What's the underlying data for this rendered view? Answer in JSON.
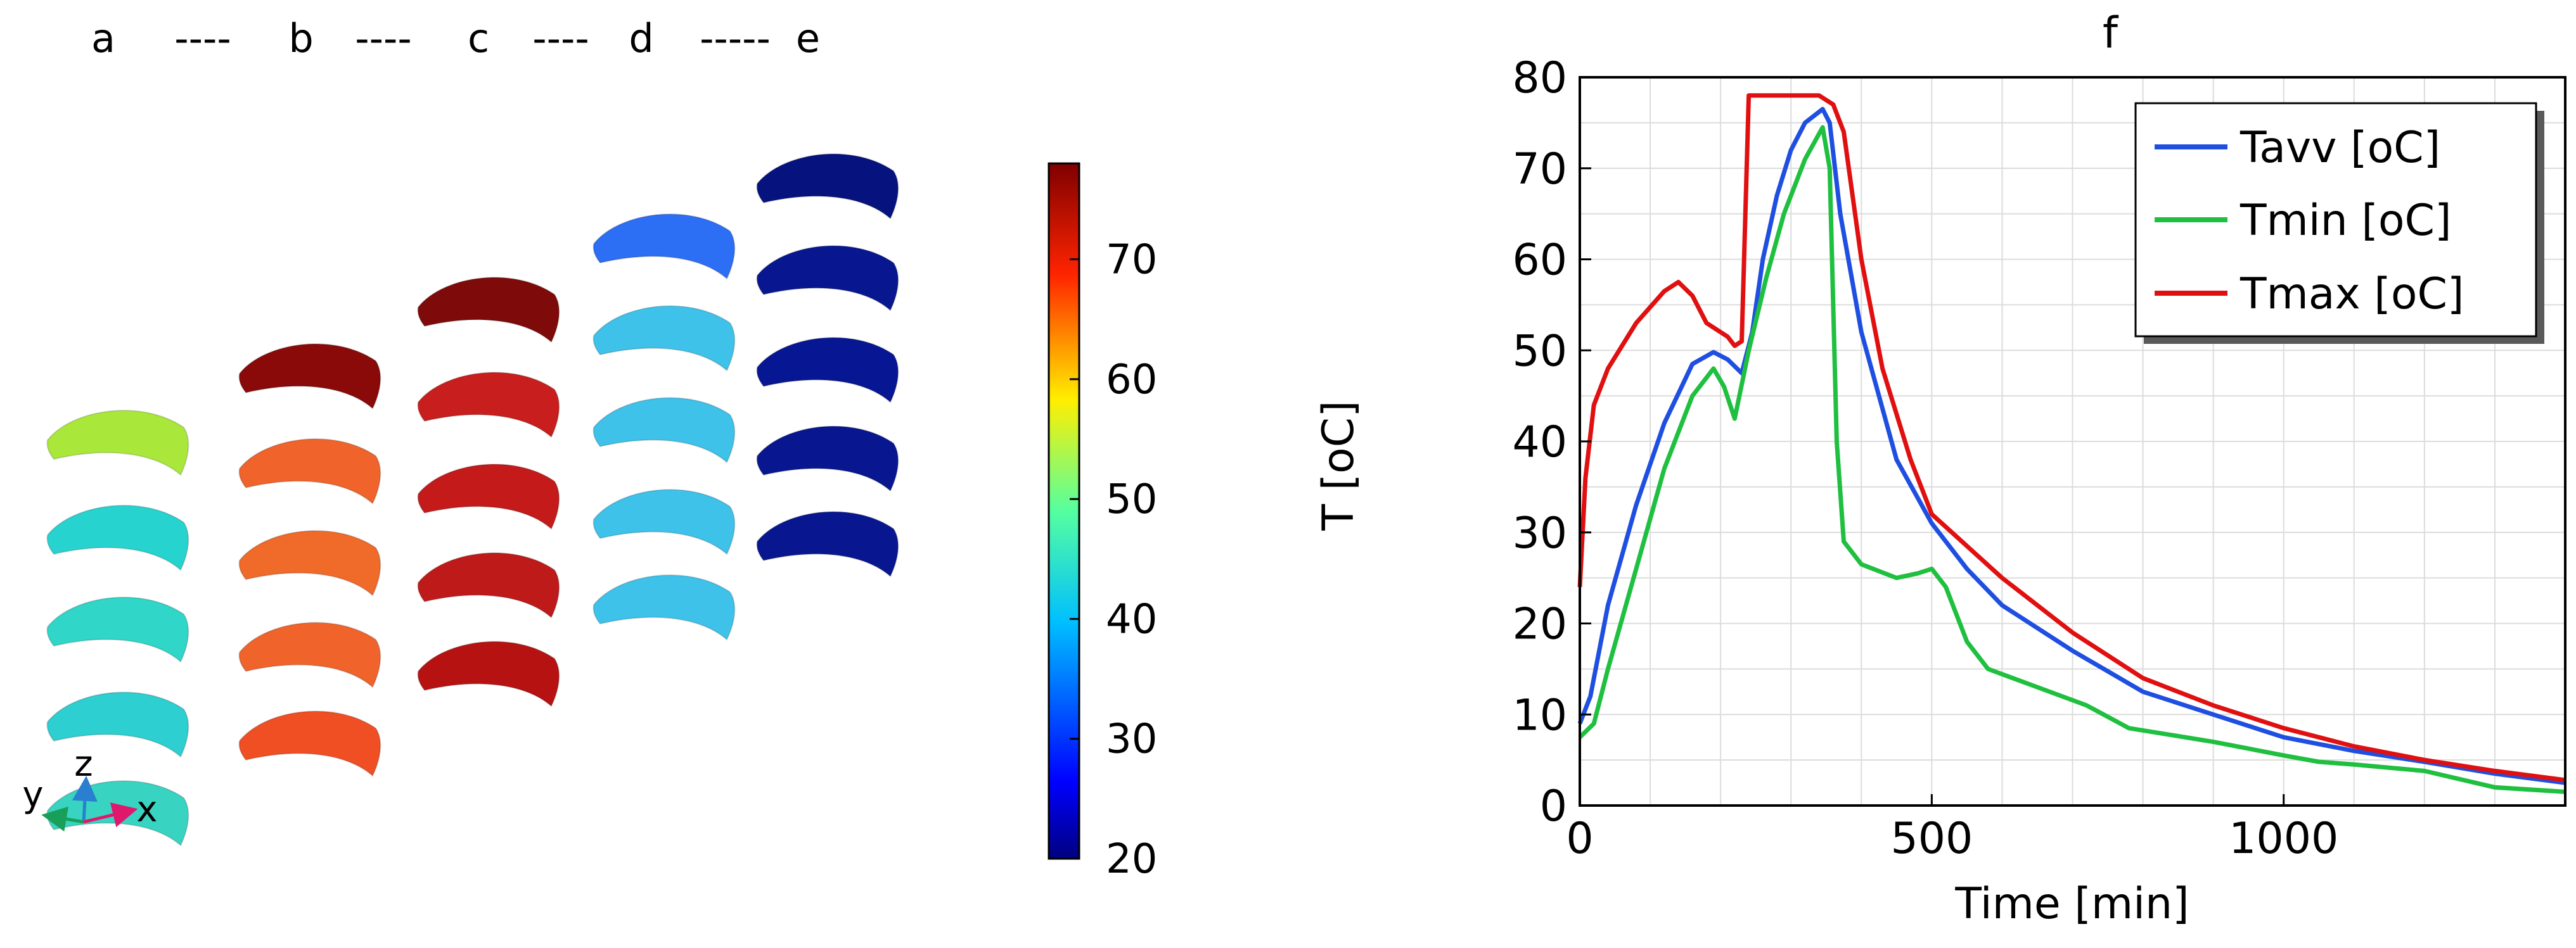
{
  "left_panel": {
    "sequence_labels": [
      "a",
      "----",
      "b",
      "----",
      "c",
      "----",
      "d",
      "-----",
      "e"
    ],
    "colorbar": {
      "label": "T [oC]",
      "min": 20,
      "max": 78,
      "ticks": [
        20,
        30,
        40,
        50,
        60,
        70
      ],
      "colormap": "jet"
    },
    "axes_triad": {
      "x": "x",
      "y": "y",
      "z": "z"
    },
    "snapshot_columns": [
      {
        "id": "a",
        "colors": [
          "#a9e83a",
          "#27d3cf",
          "#30d6c8",
          "#2dcfd0",
          "#39d3c2"
        ]
      },
      {
        "id": "b",
        "colors": [
          "#8a0a0a",
          "#f0642c",
          "#f06a2a",
          "#f0642c",
          "#f04f24"
        ]
      },
      {
        "id": "c",
        "colors": [
          "#7e0a0a",
          "#c81e1e",
          "#c41a1a",
          "#bf1a1a",
          "#b71212"
        ]
      },
      {
        "id": "d",
        "colors": [
          "#2c6ff5",
          "#3ec2ea",
          "#3ec2ea",
          "#3ec2ea",
          "#3ec2ea"
        ]
      },
      {
        "id": "e",
        "colors": [
          "#06127e",
          "#08178f",
          "#071692",
          "#08178f",
          "#08178f"
        ]
      }
    ]
  },
  "chart_data": {
    "type": "line",
    "title": "f",
    "xlabel": "Time [min]",
    "ylabel": "",
    "xlim": [
      0,
      1400
    ],
    "ylim": [
      0,
      80
    ],
    "xticks": [
      0,
      500,
      1000
    ],
    "yticks": [
      0,
      10,
      20,
      30,
      40,
      50,
      60,
      70,
      80
    ],
    "grid": true,
    "legend_position": "top-right",
    "series": [
      {
        "name": "Tavv [oC]",
        "color": "#1f4fe0",
        "points": [
          [
            0,
            9
          ],
          [
            15,
            12
          ],
          [
            40,
            22
          ],
          [
            80,
            33
          ],
          [
            120,
            42
          ],
          [
            160,
            48.5
          ],
          [
            190,
            49.8
          ],
          [
            210,
            49
          ],
          [
            230,
            47.5
          ],
          [
            245,
            52
          ],
          [
            260,
            60
          ],
          [
            280,
            67
          ],
          [
            300,
            72
          ],
          [
            320,
            75
          ],
          [
            345,
            76.5
          ],
          [
            355,
            75
          ],
          [
            370,
            65
          ],
          [
            400,
            52
          ],
          [
            450,
            38
          ],
          [
            500,
            31
          ],
          [
            550,
            26
          ],
          [
            600,
            22
          ],
          [
            700,
            17
          ],
          [
            800,
            12.5
          ],
          [
            900,
            10
          ],
          [
            1000,
            7.5
          ],
          [
            1100,
            6
          ],
          [
            1200,
            4.8
          ],
          [
            1300,
            3.5
          ],
          [
            1400,
            2.5
          ]
        ]
      },
      {
        "name": "Tmin [oC]",
        "color": "#1fbf3f",
        "points": [
          [
            0,
            7.5
          ],
          [
            20,
            9
          ],
          [
            40,
            15
          ],
          [
            80,
            26
          ],
          [
            120,
            37
          ],
          [
            160,
            45
          ],
          [
            190,
            48
          ],
          [
            205,
            46
          ],
          [
            220,
            42.5
          ],
          [
            240,
            50
          ],
          [
            265,
            58
          ],
          [
            290,
            65
          ],
          [
            320,
            71
          ],
          [
            345,
            74.5
          ],
          [
            355,
            70
          ],
          [
            365,
            40
          ],
          [
            375,
            29
          ],
          [
            400,
            26.5
          ],
          [
            450,
            25
          ],
          [
            480,
            25.5
          ],
          [
            500,
            26
          ],
          [
            520,
            24
          ],
          [
            550,
            18
          ],
          [
            580,
            15
          ],
          [
            650,
            13
          ],
          [
            720,
            11
          ],
          [
            780,
            8.5
          ],
          [
            900,
            7
          ],
          [
            1000,
            5.5
          ],
          [
            1050,
            4.8
          ],
          [
            1100,
            4.5
          ],
          [
            1200,
            3.8
          ],
          [
            1300,
            2
          ],
          [
            1400,
            1.5
          ]
        ]
      },
      {
        "name": "Tmax [oC]",
        "color": "#e01010",
        "points": [
          [
            0,
            24
          ],
          [
            8,
            36
          ],
          [
            20,
            44
          ],
          [
            40,
            48
          ],
          [
            80,
            53
          ],
          [
            120,
            56.5
          ],
          [
            140,
            57.5
          ],
          [
            160,
            56
          ],
          [
            180,
            53
          ],
          [
            210,
            51.5
          ],
          [
            220,
            50.5
          ],
          [
            230,
            51
          ],
          [
            240,
            78
          ],
          [
            340,
            78
          ],
          [
            360,
            77
          ],
          [
            375,
            74
          ],
          [
            400,
            60
          ],
          [
            430,
            48
          ],
          [
            470,
            38
          ],
          [
            500,
            32
          ],
          [
            600,
            25
          ],
          [
            700,
            19
          ],
          [
            800,
            14
          ],
          [
            900,
            11
          ],
          [
            1000,
            8.5
          ],
          [
            1100,
            6.5
          ],
          [
            1200,
            5
          ],
          [
            1300,
            3.8
          ],
          [
            1400,
            2.8
          ]
        ]
      }
    ]
  }
}
